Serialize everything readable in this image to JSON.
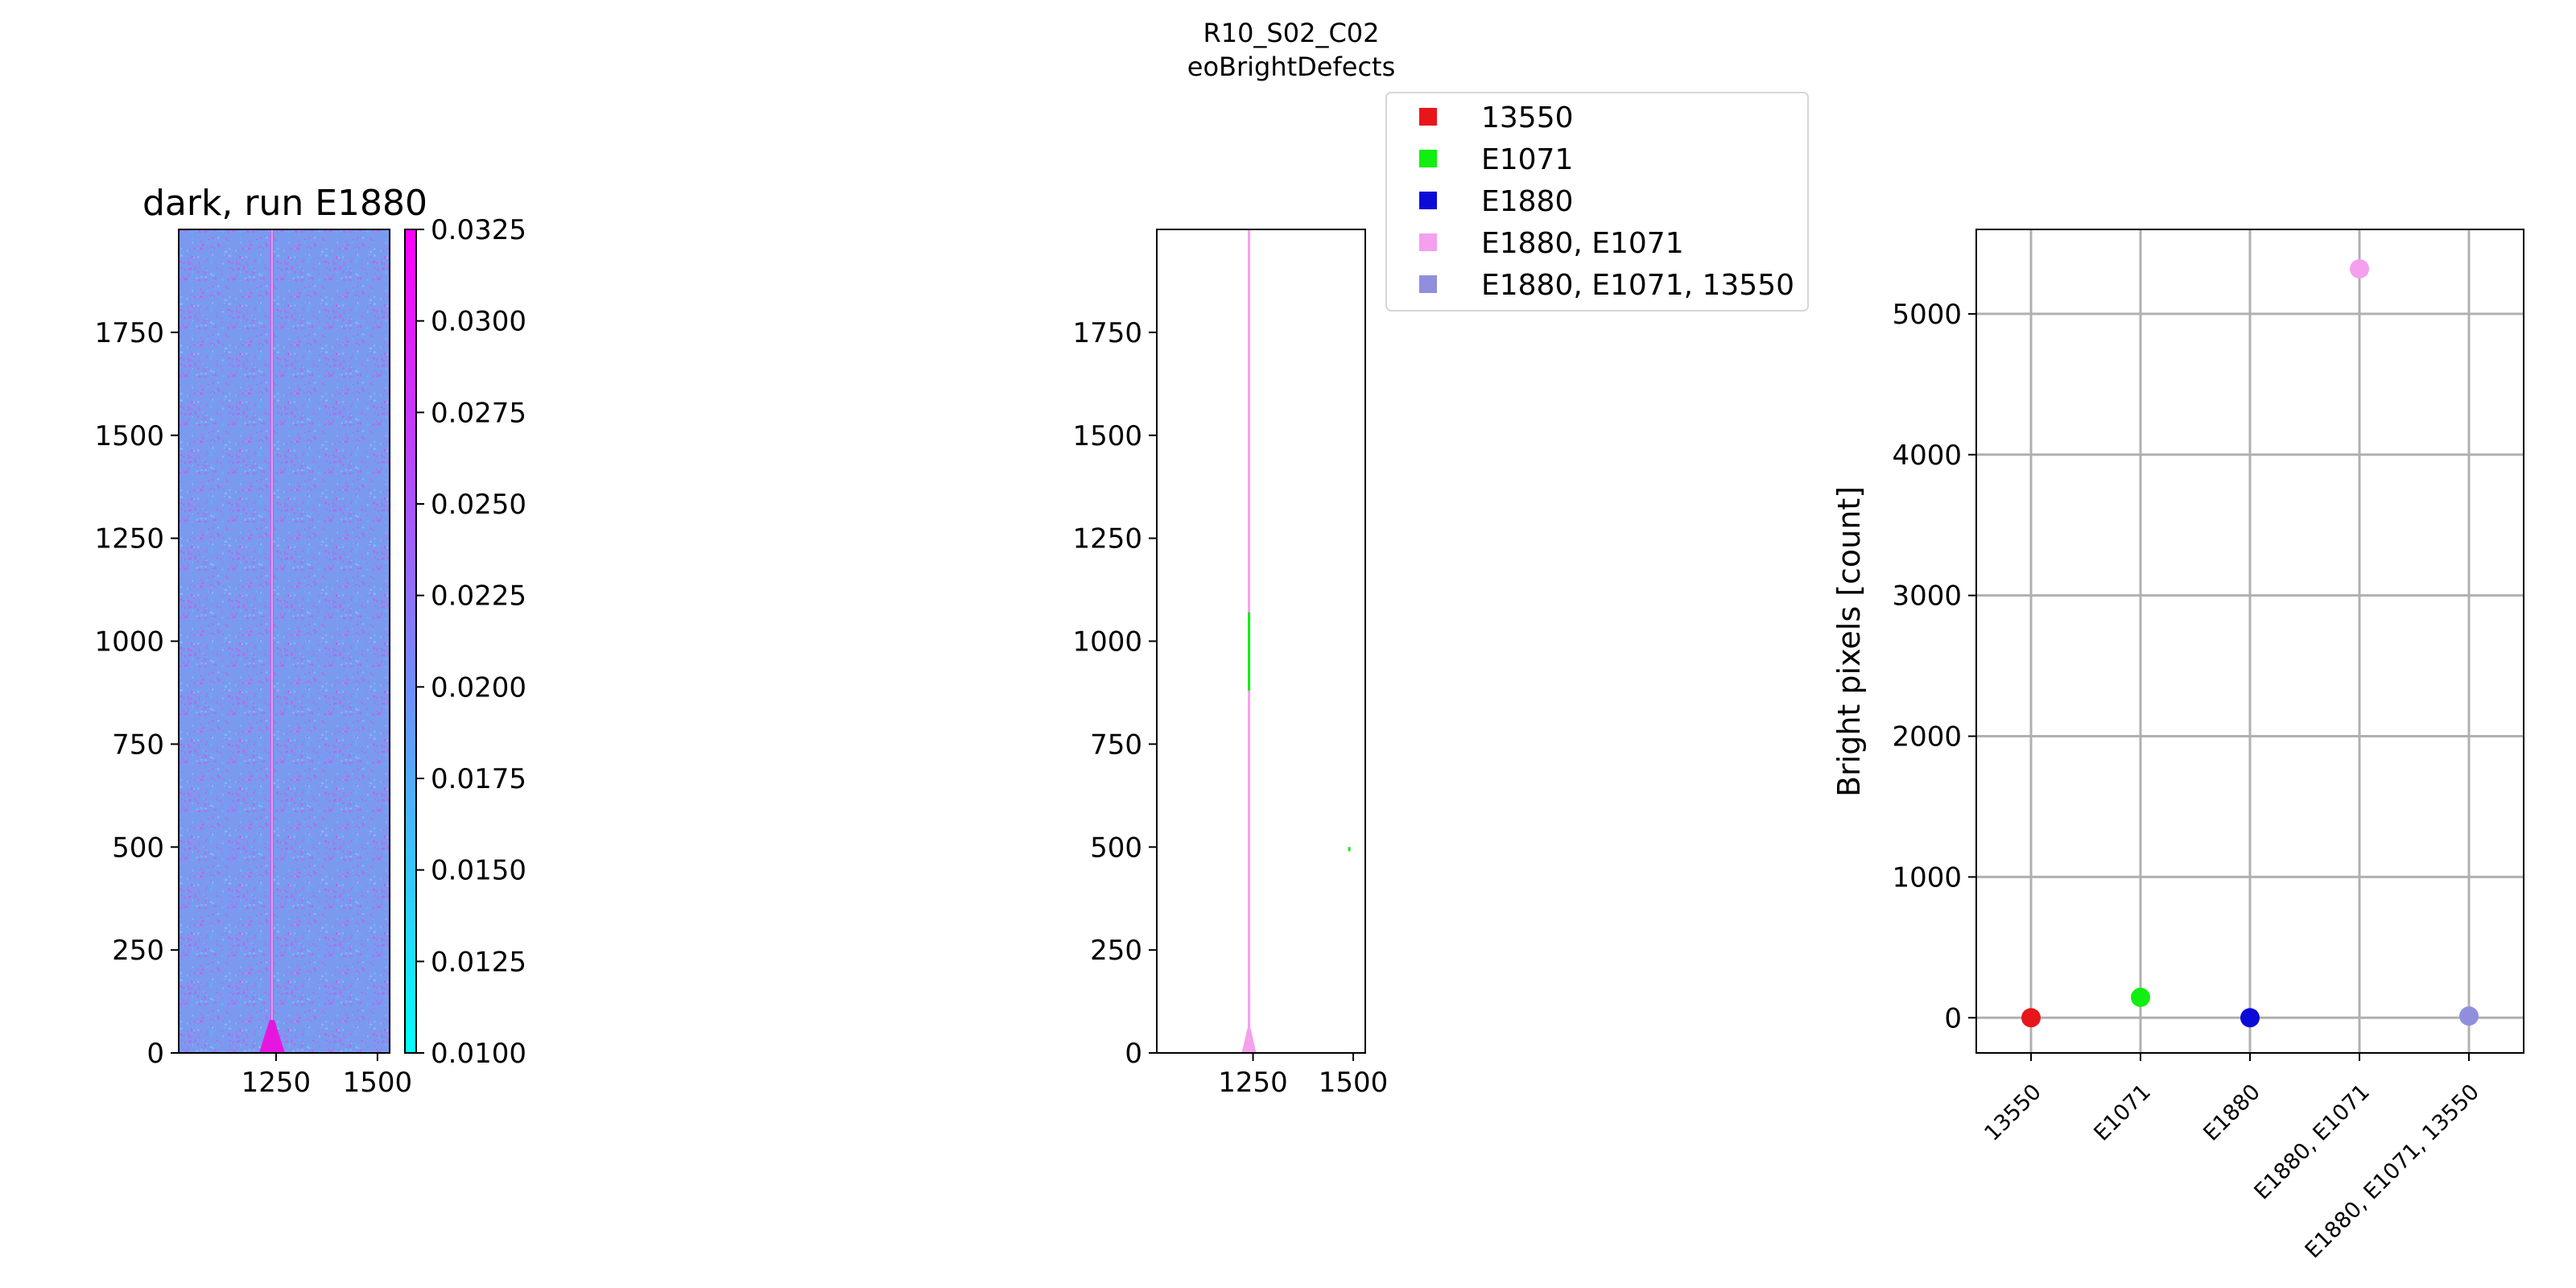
{
  "suptitle": {
    "line1": "R10_S02_C02",
    "line2": "eoBrightDefects"
  },
  "legend": {
    "placement": "upper-center",
    "entries": [
      {
        "label": "13550",
        "color": "#e8161b"
      },
      {
        "label": "E1071",
        "color": "#11ee11"
      },
      {
        "label": "E1880",
        "color": "#0b0bd8"
      },
      {
        "label": "E1880, E1071",
        "color": "#f5a0ee"
      },
      {
        "label": "E1880, E1071, 13550",
        "color": "#8f8fdd"
      }
    ]
  },
  "chart_data": [
    {
      "type": "heatmap",
      "title": "dark, run E1880",
      "xlabel": "",
      "ylabel": "",
      "xlim": [
        1010,
        1530
      ],
      "ylim": [
        0,
        2000
      ],
      "x_ticks": [
        1250,
        1500
      ],
      "y_ticks": [
        0,
        250,
        500,
        750,
        1000,
        1250,
        1500,
        1750
      ],
      "colormap": "cool",
      "colorbar": {
        "range": [
          0.01,
          0.0325
        ],
        "ticks": [
          "0.0100",
          "0.0125",
          "0.0150",
          "0.0175",
          "0.0200",
          "0.0225",
          "0.0250",
          "0.0275",
          "0.0300",
          "0.0325"
        ],
        "colors": [
          "#00ffff",
          "#ff00ff"
        ]
      },
      "bright_column_x": 1240
    },
    {
      "type": "heatmap",
      "title": "",
      "xlabel": "",
      "ylabel": "",
      "xlim": [
        1010,
        1530
      ],
      "ylim": [
        0,
        2000
      ],
      "x_ticks": [
        1250,
        1500
      ],
      "y_ticks": [
        0,
        250,
        500,
        750,
        1000,
        1250,
        1500,
        1750
      ],
      "defect_segments": [
        {
          "x": 1240,
          "y0": 0,
          "y1": 2000,
          "group": "E1880, E1071"
        },
        {
          "x": 1240,
          "y0": 880,
          "y1": 1070,
          "group": "E1071"
        },
        {
          "x": 1240,
          "y0": 0,
          "y1": 180,
          "group": "E1880, E1071"
        },
        {
          "x": 1490,
          "y0": 490,
          "y1": 500,
          "group": "E1071"
        }
      ]
    },
    {
      "type": "scatter",
      "title": "",
      "xlabel": "",
      "ylabel": "Bright pixels [count]",
      "categories": [
        "13550",
        "E1071",
        "E1880",
        "E1880, E1071",
        "E1880, E1071, 13550"
      ],
      "values": [
        0,
        145,
        0,
        5320,
        12
      ],
      "colors": [
        "#e8161b",
        "#11ee11",
        "#0b0bd8",
        "#f5a0ee",
        "#8f8fdd"
      ],
      "ylim": [
        -250,
        5600
      ],
      "y_ticks": [
        0,
        1000,
        2000,
        3000,
        4000,
        5000
      ],
      "grid": true
    }
  ]
}
